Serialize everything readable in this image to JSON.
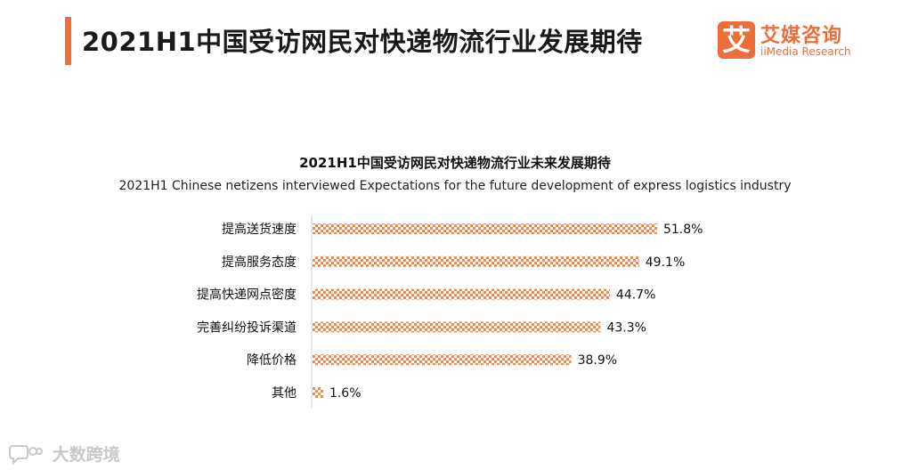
{
  "header": {
    "title": "2021H1中国受访网民对快递物流行业发展期待",
    "accent_color": "#ed6e3a"
  },
  "logo": {
    "mark": "艾",
    "name_cn": "艾媒咨询",
    "name_en": "iiMedia Research"
  },
  "watermark": {
    "text": "大数跨境",
    "icon": "speech-bubble-icon"
  },
  "chart_data": {
    "type": "bar",
    "orientation": "horizontal",
    "title": "2021H1中国受访网民对快递物流行业未来发展期待",
    "subtitle": "2021H1 Chinese netizens interviewed Expectations for the future development of express logistics industry",
    "categories": [
      "提高送货速度",
      "提高服务态度",
      "提高快递网点密度",
      "完善纠纷投诉渠道",
      "降低价格",
      "其他"
    ],
    "values": [
      51.8,
      49.1,
      44.7,
      43.3,
      38.9,
      1.6
    ],
    "value_labels": [
      "51.8%",
      "49.1%",
      "44.7%",
      "43.3%",
      "38.9%",
      "1.6%"
    ],
    "unit": "%",
    "xlim": [
      0,
      60
    ],
    "bar_color": "#ed8a55",
    "bar_pattern": "checkerboard",
    "grid": false,
    "legend": "none"
  }
}
